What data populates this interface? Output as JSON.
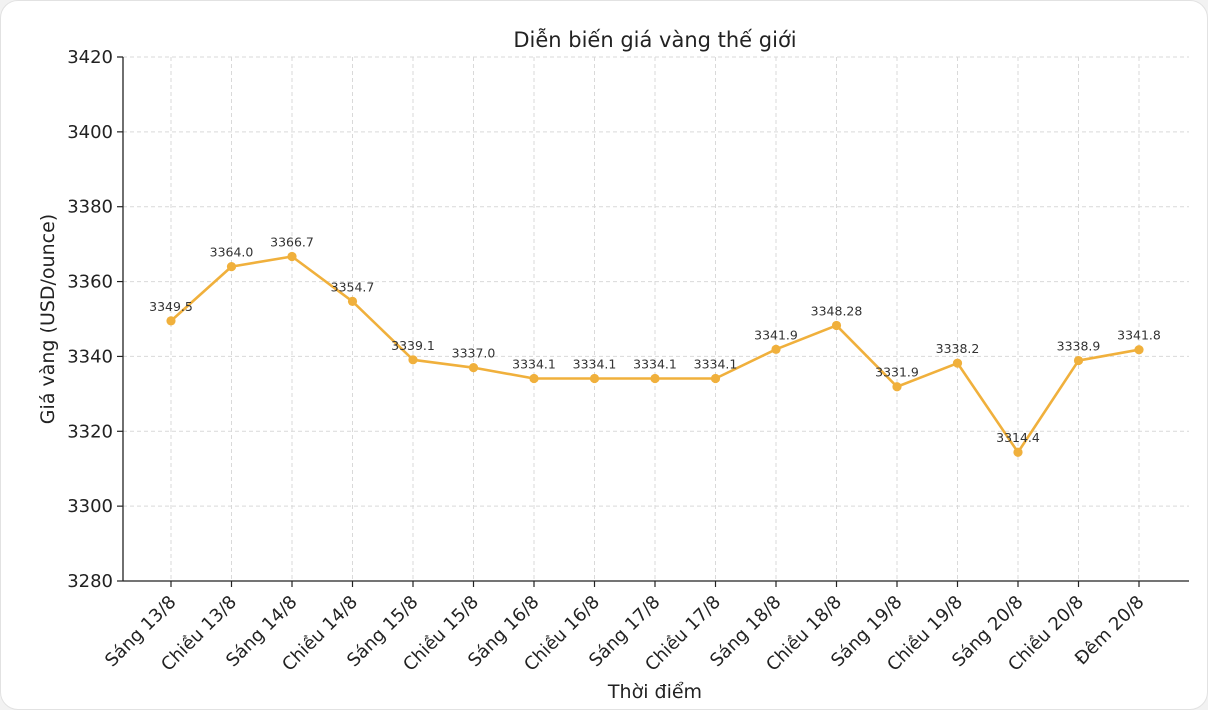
{
  "chart_data": {
    "type": "line",
    "title": "Diễn biến giá vàng thế giới",
    "xlabel": "Thời điểm",
    "ylabel": "Giá vàng (USD/ounce)",
    "ylim": [
      3280,
      3420
    ],
    "yticks": [
      3280,
      3300,
      3320,
      3340,
      3360,
      3380,
      3400,
      3420
    ],
    "grid": true,
    "line_color": "#f0b03c",
    "categories": [
      "Sáng 13/8",
      "Chiều 13/8",
      "Sáng 14/8",
      "Chiều 14/8",
      "Sáng 15/8",
      "Chiều 15/8",
      "Sáng 16/8",
      "Chiều 16/8",
      "Sáng 17/8",
      "Chiều 17/8",
      "Sáng 18/8",
      "Chiều 18/8",
      "Sáng 19/8",
      "Chiều 19/8",
      "Sáng 20/8",
      "Chiều 20/8",
      "Đêm 20/8"
    ],
    "series": [
      {
        "name": "Giá vàng",
        "values": [
          3349.5,
          3364.0,
          3366.7,
          3354.7,
          3339.1,
          3337.0,
          3334.1,
          3334.1,
          3334.1,
          3334.1,
          3341.9,
          3348.28,
          3331.9,
          3338.2,
          3314.4,
          3338.9,
          3341.8
        ],
        "labels": [
          "3349.5",
          "3364.0",
          "3366.7",
          "3354.7",
          "3339.1",
          "3337.0",
          "3334.1",
          "3334.1",
          "3334.1",
          "3334.1",
          "3341.9",
          "3348.28",
          "3331.9",
          "3338.2",
          "3314.4",
          "3338.9",
          "3341.8"
        ]
      }
    ]
  }
}
